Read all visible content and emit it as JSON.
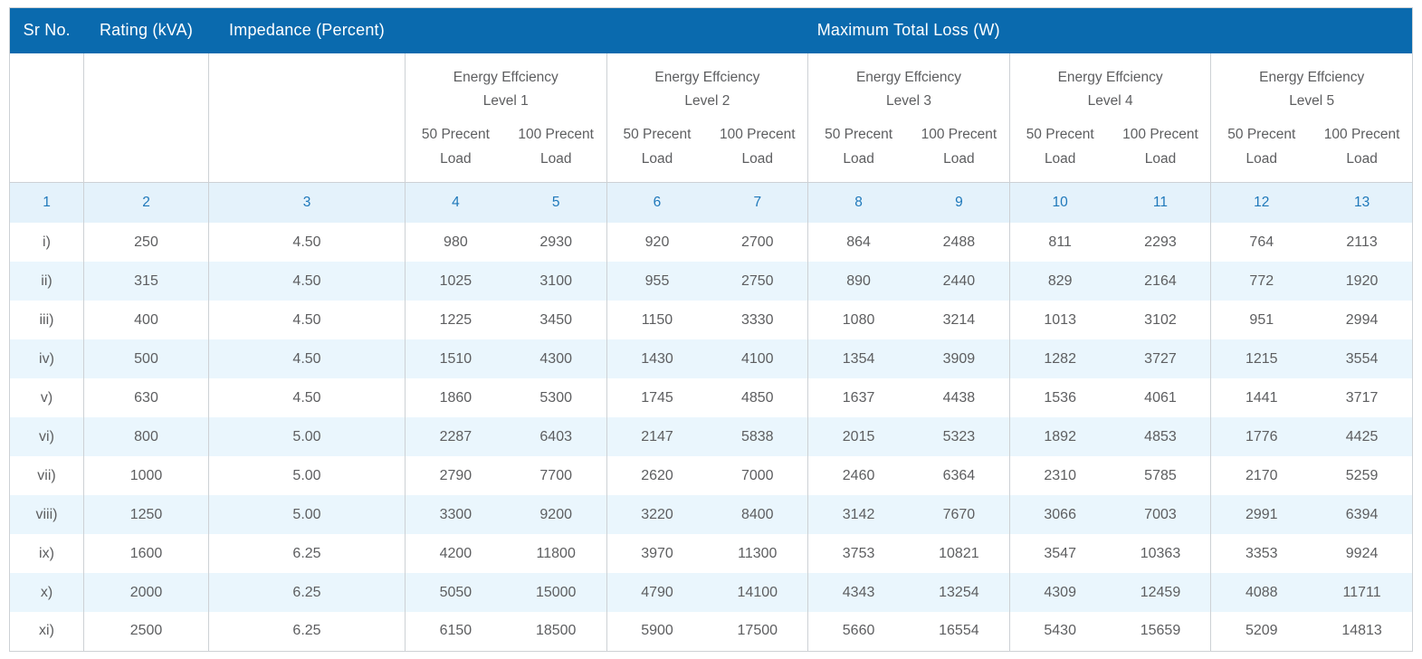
{
  "table": {
    "header": {
      "sr_no": "Sr No.",
      "rating": "Rating (kVA)",
      "impedance": "Impedance (Percent)",
      "max_total_loss": "Maximum Total Loss (W)"
    },
    "levels": [
      {
        "title": "Energy Effciency",
        "subtitle": "Level 1"
      },
      {
        "title": "Energy Effciency",
        "subtitle": "Level 2"
      },
      {
        "title": "Energy Effciency",
        "subtitle": "Level 3"
      },
      {
        "title": "Energy Effciency",
        "subtitle": "Level 4"
      },
      {
        "title": "Energy Effciency",
        "subtitle": "Level 5"
      }
    ],
    "load_labels": {
      "fifty": "50 Precent Load",
      "hundred": "100 Precent Load"
    },
    "column_numbers": [
      "1",
      "2",
      "3",
      "4",
      "5",
      "6",
      "7",
      "8",
      "9",
      "10",
      "11",
      "12",
      "13"
    ],
    "rows": [
      {
        "sr": "i)",
        "rating": "250",
        "impedance": "4.50",
        "losses": [
          "980",
          "2930",
          "920",
          "2700",
          "864",
          "2488",
          "811",
          "2293",
          "764",
          "2113"
        ]
      },
      {
        "sr": "ii)",
        "rating": "315",
        "impedance": "4.50",
        "losses": [
          "1025",
          "3100",
          "955",
          "2750",
          "890",
          "2440",
          "829",
          "2164",
          "772",
          "1920"
        ]
      },
      {
        "sr": "iii)",
        "rating": "400",
        "impedance": "4.50",
        "losses": [
          "1225",
          "3450",
          "1150",
          "3330",
          "1080",
          "3214",
          "1013",
          "3102",
          "951",
          "2994"
        ]
      },
      {
        "sr": "iv)",
        "rating": "500",
        "impedance": "4.50",
        "losses": [
          "1510",
          "4300",
          "1430",
          "4100",
          "1354",
          "3909",
          "1282",
          "3727",
          "1215",
          "3554"
        ]
      },
      {
        "sr": "v)",
        "rating": "630",
        "impedance": "4.50",
        "losses": [
          "1860",
          "5300",
          "1745",
          "4850",
          "1637",
          "4438",
          "1536",
          "4061",
          "1441",
          "3717"
        ]
      },
      {
        "sr": "vi)",
        "rating": "800",
        "impedance": "5.00",
        "losses": [
          "2287",
          "6403",
          "2147",
          "5838",
          "2015",
          "5323",
          "1892",
          "4853",
          "1776",
          "4425"
        ]
      },
      {
        "sr": "vii)",
        "rating": "1000",
        "impedance": "5.00",
        "losses": [
          "2790",
          "7700",
          "2620",
          "7000",
          "2460",
          "6364",
          "2310",
          "5785",
          "2170",
          "5259"
        ]
      },
      {
        "sr": "viii)",
        "rating": "1250",
        "impedance": "5.00",
        "losses": [
          "3300",
          "9200",
          "3220",
          "8400",
          "3142",
          "7670",
          "3066",
          "7003",
          "2991",
          "6394"
        ]
      },
      {
        "sr": "ix)",
        "rating": "1600",
        "impedance": "6.25",
        "losses": [
          "4200",
          "11800",
          "3970",
          "11300",
          "3753",
          "10821",
          "3547",
          "10363",
          "3353",
          "9924"
        ]
      },
      {
        "sr": "x)",
        "rating": "2000",
        "impedance": "6.25",
        "losses": [
          "5050",
          "15000",
          "4790",
          "14100",
          "4343",
          "13254",
          "4309",
          "12459",
          "4088",
          "11711"
        ]
      },
      {
        "sr": "xi)",
        "rating": "2500",
        "impedance": "6.25",
        "losses": [
          "6150",
          "18500",
          "5900",
          "17500",
          "5660",
          "16554",
          "5430",
          "15659",
          "5209",
          "14813"
        ]
      }
    ]
  },
  "colors": {
    "header_bg": "#0a6aae",
    "header_text": "#ffffff",
    "number_row_bg": "#e4f2fb",
    "number_text": "#1e78ba",
    "alt_row_bg": "#eaf6fd",
    "data_text": "#5d5e60",
    "border": "#cdd1d5"
  }
}
